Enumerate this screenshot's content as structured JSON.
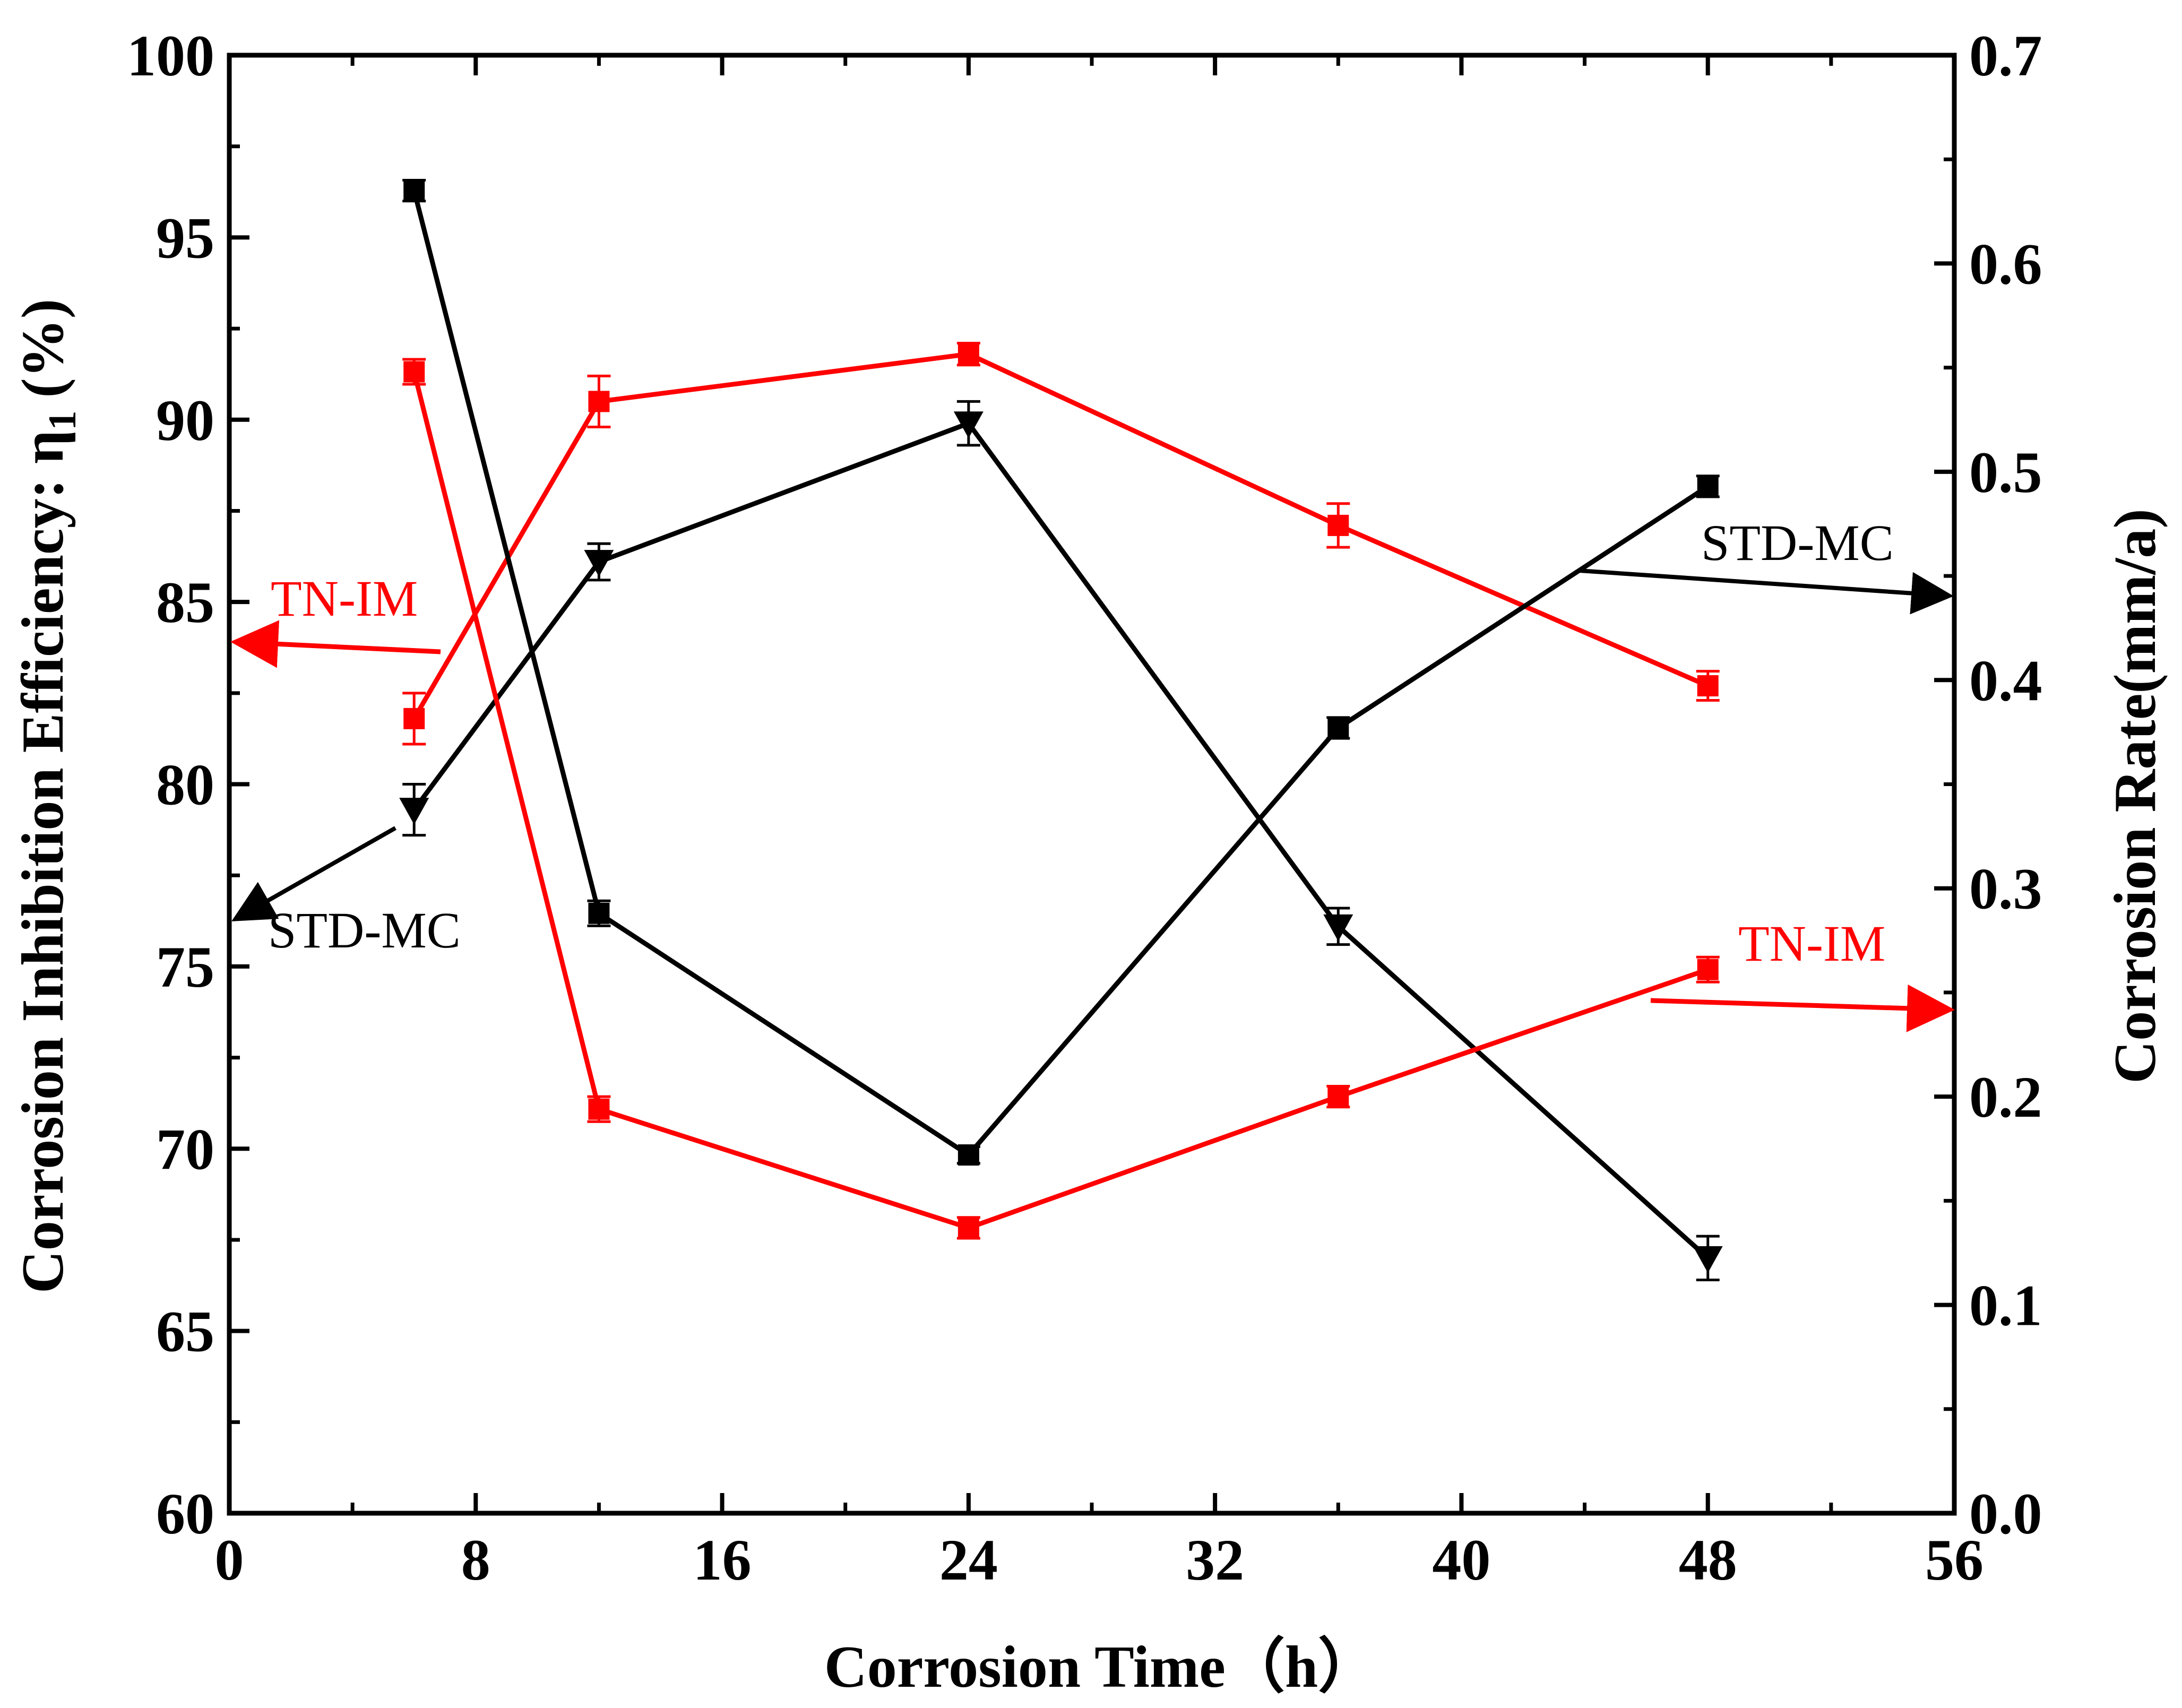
{
  "chart_data": {
    "type": "line",
    "x_axis": {
      "label": "Corrosion Time（h）",
      "range": [
        0,
        56
      ],
      "ticks": [
        0,
        8,
        16,
        24,
        32,
        40,
        48,
        56
      ],
      "tick_labels": [
        "0",
        "8",
        "16",
        "24",
        "32",
        "40",
        "48",
        "56"
      ]
    },
    "y_left": {
      "label_main": "Corrosion Inhibition Efficiency: η",
      "label_sub": "1",
      "label_unit": "(%)",
      "range": [
        60,
        100
      ],
      "ticks": [
        60,
        65,
        70,
        75,
        80,
        85,
        90,
        95,
        100
      ],
      "tick_labels": [
        "60",
        "65",
        "70",
        "75",
        "80",
        "85",
        "90",
        "95",
        "100"
      ]
    },
    "y_right": {
      "label": "Corrosion Rate(mm/a)",
      "range": [
        0,
        0.7
      ],
      "ticks": [
        0,
        0.1,
        0.2,
        0.3,
        0.4,
        0.5,
        0.6,
        0.7
      ],
      "tick_labels": [
        "0.0",
        "0.1",
        "0.2",
        "0.3",
        "0.4",
        "0.5",
        "0.6",
        "0.7"
      ]
    },
    "grid": false,
    "legend": "none",
    "series": [
      {
        "name": "TN-IM",
        "axis": "left",
        "marker": "square",
        "color": "#ff0000",
        "x": [
          6,
          12,
          24,
          36,
          48
        ],
        "y": [
          81.8,
          90.5,
          91.8,
          87.1,
          82.7
        ],
        "err": [
          0.7,
          0.7,
          0.3,
          0.6,
          0.4
        ]
      },
      {
        "name": "STD-MC",
        "axis": "left",
        "marker": "triangle-down",
        "color": "#000000",
        "x": [
          6,
          12,
          24,
          36,
          48
        ],
        "y": [
          79.3,
          86.1,
          89.9,
          76.1,
          67.0
        ],
        "err": [
          0.7,
          0.5,
          0.6,
          0.5,
          0.6
        ]
      },
      {
        "name": "STD-MC",
        "axis": "right",
        "marker": "square",
        "color": "#000000",
        "x": [
          6,
          12,
          24,
          36,
          48
        ],
        "y": [
          0.635,
          0.288,
          0.172,
          0.377,
          0.493
        ],
        "err": [
          0.005,
          0.006,
          0.004,
          0.005,
          0.005
        ]
      },
      {
        "name": "TN-IM",
        "axis": "right",
        "marker": "square",
        "color": "#ff0000",
        "x": [
          6,
          12,
          24,
          36,
          48
        ],
        "y": [
          0.548,
          0.194,
          0.137,
          0.2,
          0.261
        ],
        "err": [
          0.006,
          0.006,
          0.005,
          0.005,
          0.006
        ]
      }
    ],
    "annotations": [
      {
        "text": "TN-IM",
        "color": "#ff0000",
        "points_to": "left axis"
      },
      {
        "text": "STD-MC",
        "color": "#000000",
        "points_to": "left axis"
      },
      {
        "text": "STD-MC",
        "color": "#000000",
        "points_to": "right axis"
      },
      {
        "text": "TN-IM",
        "color": "#ff0000",
        "points_to": "right axis"
      }
    ]
  }
}
